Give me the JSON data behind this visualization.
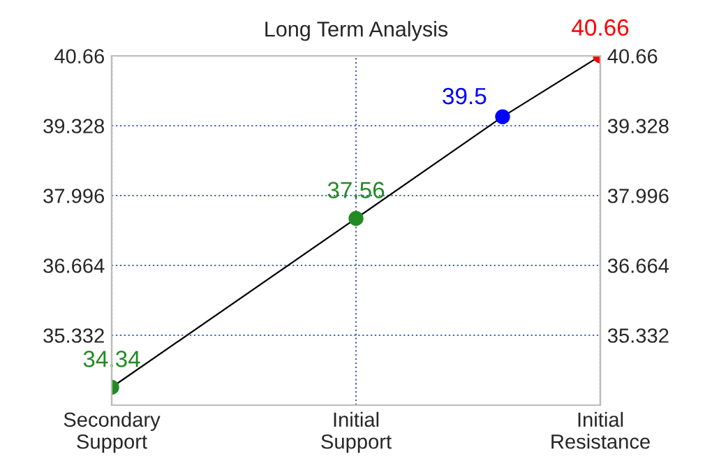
{
  "chart_data": {
    "type": "line",
    "title": "Long Term Analysis",
    "categories": [
      "Secondary\nSupport",
      null,
      null,
      null,
      null,
      "Initial\nSupport",
      null,
      null,
      null,
      null,
      "Initial\nResistance"
    ],
    "ylim": [
      34,
      40.66
    ],
    "yticks": [
      35.332,
      36.664,
      37.996,
      39.328,
      40.66
    ],
    "y2lim": [
      34,
      40.66
    ],
    "y2ticks": [
      35.332,
      36.664,
      37.996,
      39.328,
      40.66
    ],
    "grid": true,
    "marker": "circle",
    "data_labels": true,
    "series": [
      {
        "color": "#000000",
        "values": [
          34.34,
          null,
          null,
          null,
          null,
          37.56,
          null,
          null,
          39.5,
          null,
          40.66
        ],
        "colors": [
          "#228b22",
          null,
          null,
          null,
          null,
          "#228b22",
          null,
          null,
          "#0000ff",
          null,
          "#ff0000"
        ]
      }
    ]
  }
}
